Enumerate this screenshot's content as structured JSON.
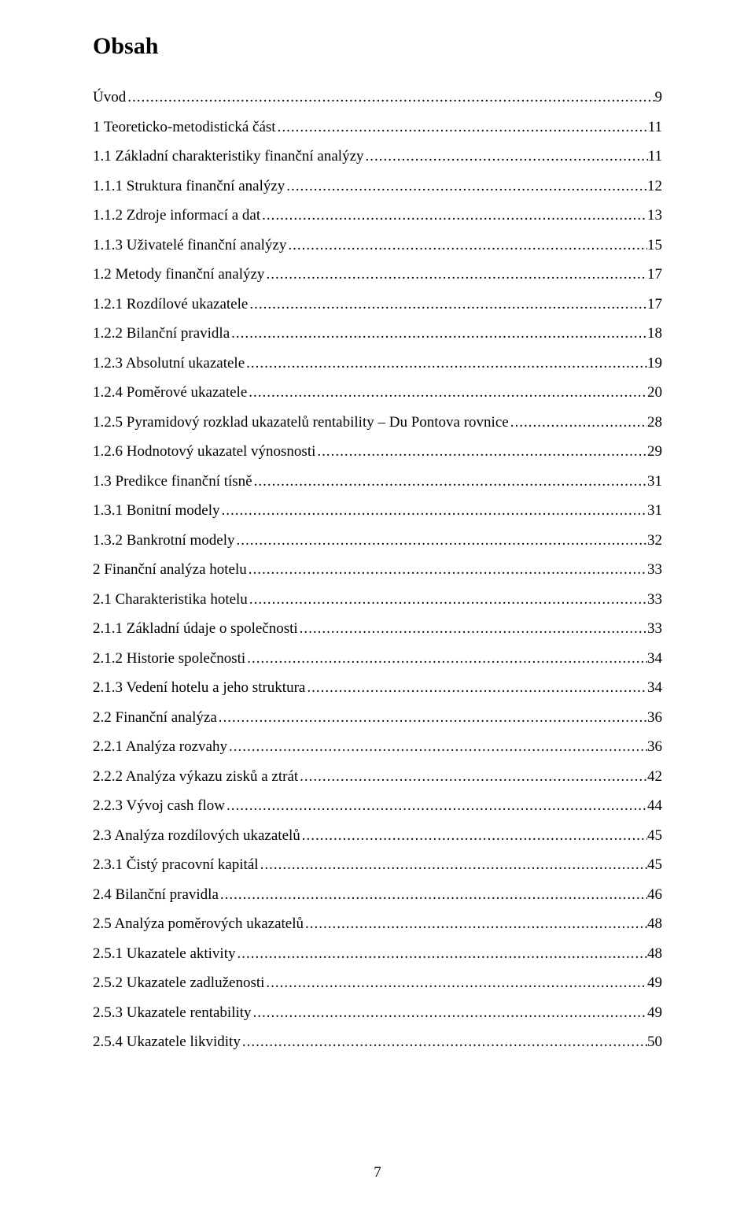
{
  "title": "Obsah",
  "page_number": "7",
  "entries": [
    {
      "label": "Úvod",
      "page": "9"
    },
    {
      "label": "1 Teoreticko-metodistická část",
      "page": "11"
    },
    {
      "label": "1.1 Základní charakteristiky finanční analýzy",
      "page": "11"
    },
    {
      "label": "1.1.1 Struktura finanční analýzy",
      "page": "12"
    },
    {
      "label": "1.1.2 Zdroje informací a dat",
      "page": "13"
    },
    {
      "label": "1.1.3 Uživatelé finanční analýzy",
      "page": "15"
    },
    {
      "label": "1.2 Metody finanční analýzy",
      "page": "17"
    },
    {
      "label": "1.2.1 Rozdílové ukazatele",
      "page": "17"
    },
    {
      "label": "1.2.2 Bilanční pravidla",
      "page": "18"
    },
    {
      "label": "1.2.3 Absolutní ukazatele",
      "page": "19"
    },
    {
      "label": "1.2.4 Poměrové ukazatele",
      "page": "20"
    },
    {
      "label": "1.2.5 Pyramidový rozklad ukazatelů rentability – Du Pontova rovnice",
      "page": "28"
    },
    {
      "label": "1.2.6 Hodnotový ukazatel výnosnosti",
      "page": "29"
    },
    {
      "label": "1.3 Predikce finanční tísně",
      "page": "31"
    },
    {
      "label": "1.3.1 Bonitní modely",
      "page": "31"
    },
    {
      "label": "1.3.2 Bankrotní modely",
      "page": "32"
    },
    {
      "label": "2 Finanční analýza hotelu",
      "page": "33"
    },
    {
      "label": "2.1 Charakteristika hotelu",
      "page": "33"
    },
    {
      "label": "2.1.1 Základní údaje o společnosti",
      "page": "33"
    },
    {
      "label": "2.1.2 Historie společnosti",
      "page": "34"
    },
    {
      "label": "2.1.3 Vedení hotelu a jeho struktura",
      "page": "34"
    },
    {
      "label": "2.2 Finanční analýza",
      "page": "36"
    },
    {
      "label": "2.2.1 Analýza rozvahy",
      "page": "36"
    },
    {
      "label": "2.2.2 Analýza výkazu zisků a ztrát",
      "page": "42"
    },
    {
      "label": "2.2.3 Vývoj cash flow",
      "page": "44"
    },
    {
      "label": "2.3 Analýza rozdílových ukazatelů",
      "page": "45"
    },
    {
      "label": "2.3.1 Čistý pracovní kapitál",
      "page": "45"
    },
    {
      "label": "2.4 Bilanční pravidla",
      "page": "46"
    },
    {
      "label": "2.5 Analýza poměrových ukazatelů",
      "page": "48"
    },
    {
      "label": "2.5.1 Ukazatele aktivity",
      "page": "48"
    },
    {
      "label": "2.5.2 Ukazatele zadluženosti",
      "page": "49"
    },
    {
      "label": "2.5.3 Ukazatele rentability",
      "page": "49"
    },
    {
      "label": "2.5.4 Ukazatele likvidity",
      "page": "50"
    }
  ]
}
